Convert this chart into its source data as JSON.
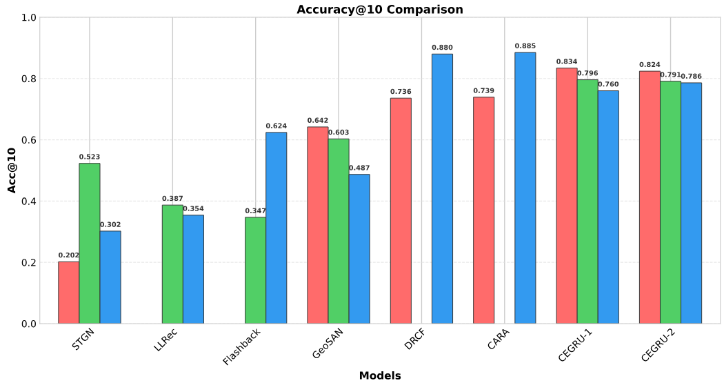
{
  "chart_data": {
    "type": "bar",
    "title": "Accuracy@10 Comparison",
    "xlabel": "Models",
    "ylabel": "Acc@10",
    "categories": [
      "STGN",
      "LLRec",
      "Flashback",
      "GeoSAN",
      "DRCF",
      "CARA",
      "CEGRU-1",
      "CEGRU-2"
    ],
    "series": [
      {
        "color": "#ff6b6b",
        "values": [
          0.202,
          null,
          null,
          0.642,
          0.736,
          0.739,
          0.834,
          0.824
        ],
        "value_labels": [
          "0.202",
          null,
          null,
          "0.642",
          "0.736",
          "0.739",
          "0.834",
          "0.824"
        ]
      },
      {
        "color": "#51cf66",
        "values": [
          0.523,
          0.387,
          0.347,
          0.603,
          null,
          null,
          0.796,
          0.791
        ],
        "value_labels": [
          "0.523",
          "0.387",
          "0.347",
          "0.603",
          null,
          null,
          "0.796",
          "0.791"
        ]
      },
      {
        "color": "#339af0",
        "values": [
          0.302,
          0.354,
          0.624,
          0.487,
          0.88,
          0.885,
          0.76,
          0.786
        ],
        "value_labels": [
          "0.302",
          "0.354",
          "0.624",
          "0.487",
          "0.880",
          "0.885",
          "0.760",
          "0.786"
        ]
      }
    ],
    "ylim": [
      0,
      1.0
    ],
    "yticks": [
      {
        "value": 0,
        "label": "0.0"
      },
      {
        "value": 0.2,
        "label": "0.2"
      },
      {
        "value": 0.4,
        "label": "0.4"
      },
      {
        "value": 0.6,
        "label": "0.6"
      },
      {
        "value": 0.8,
        "label": "0.8"
      },
      {
        "value": 1.0,
        "label": "1.0"
      }
    ],
    "grid": true
  }
}
